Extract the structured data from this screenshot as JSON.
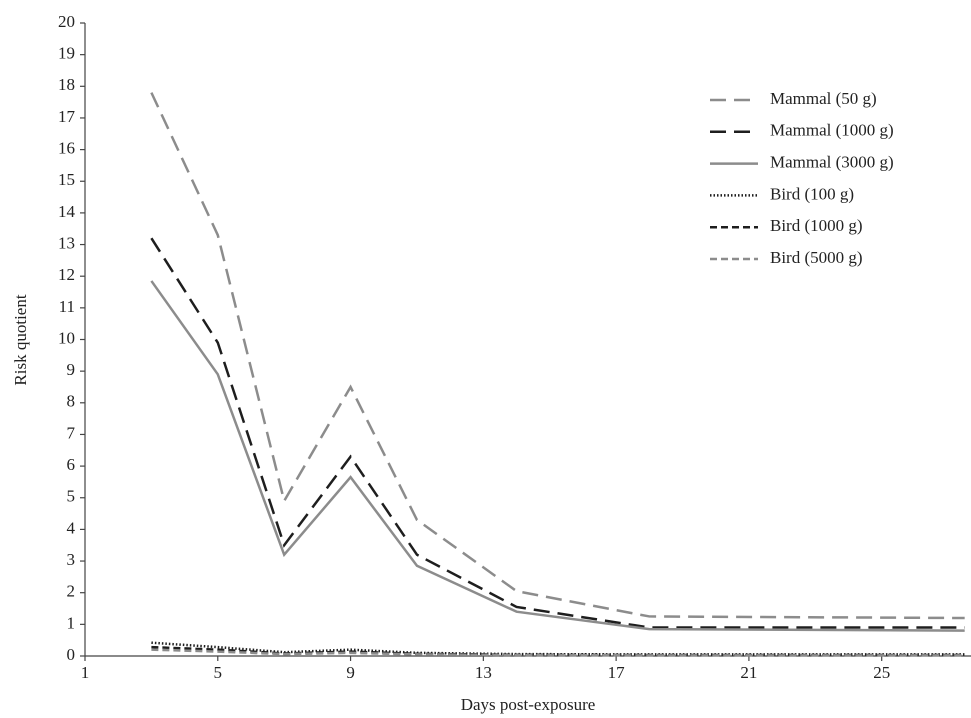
{
  "chart_data": {
    "type": "line",
    "x_label": "Days post-exposure",
    "y_label": "Risk quotient",
    "x": [
      3,
      5,
      7,
      9,
      11,
      14,
      18,
      27.5
    ],
    "xlim": [
      1,
      27.6
    ],
    "xticks": [
      1,
      5,
      9,
      13,
      17,
      21,
      25
    ],
    "ylim": [
      0,
      20
    ],
    "yticks": [
      0,
      1,
      2,
      3,
      4,
      5,
      6,
      7,
      8,
      9,
      10,
      11,
      12,
      13,
      14,
      15,
      16,
      17,
      18,
      19,
      20
    ],
    "legend": "upper right",
    "series": [
      {
        "name": "Mammal (50 g)",
        "color": "#8c8c8c",
        "dash": "long-dash",
        "values": [
          17.8,
          13.3,
          4.9,
          8.5,
          4.3,
          2.05,
          1.25,
          1.2
        ]
      },
      {
        "name": "Mammal (1000 g)",
        "color": "#1e1e1e",
        "dash": "long-dash",
        "values": [
          13.2,
          9.9,
          3.5,
          6.3,
          3.2,
          1.55,
          0.9,
          0.9
        ]
      },
      {
        "name": "Mammal (3000 g)",
        "color": "#8c8c8c",
        "dash": "solid",
        "values": [
          11.85,
          8.9,
          3.2,
          5.65,
          2.85,
          1.4,
          0.85,
          0.8
        ]
      },
      {
        "name": "Bird (100 g)",
        "color": "#1e1e1e",
        "dash": "dotted",
        "values": [
          0.42,
          0.28,
          0.12,
          0.2,
          0.1,
          0.06,
          0.05,
          0.05
        ]
      },
      {
        "name": "Bird (1000 g)",
        "color": "#1e1e1e",
        "dash": "short-dash",
        "values": [
          0.28,
          0.2,
          0.08,
          0.14,
          0.07,
          0.04,
          0.03,
          0.03
        ]
      },
      {
        "name": "Bird (5000 g)",
        "color": "#8c8c8c",
        "dash": "short-dash",
        "values": [
          0.2,
          0.14,
          0.06,
          0.1,
          0.05,
          0.03,
          0.02,
          0.02
        ]
      }
    ]
  }
}
